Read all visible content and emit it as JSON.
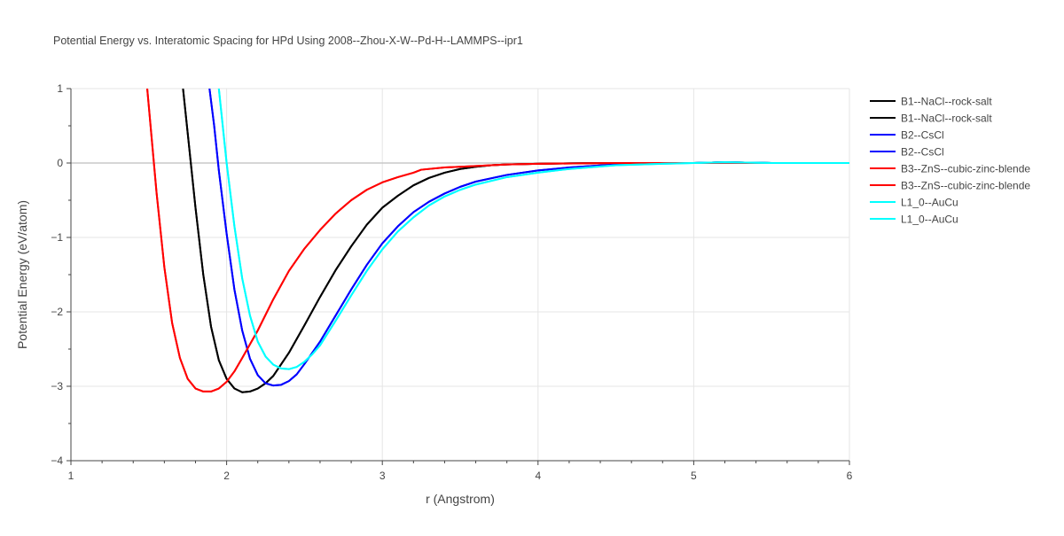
{
  "chart_data": {
    "type": "line",
    "title": "Potential Energy vs. Interatomic Spacing for HPd Using 2008--Zhou-X-W--Pd-H--LAMMPS--ipr1",
    "xlabel": "r (Angstrom)",
    "ylabel": "Potential Energy (eV/atom)",
    "xlim": [
      1,
      6
    ],
    "ylim": [
      -4,
      1
    ],
    "xticks": [
      1,
      2,
      3,
      4,
      5,
      6
    ],
    "yticks": [
      -4,
      -3,
      -2,
      -1,
      0,
      1
    ],
    "xtick_labels": [
      "1",
      "2",
      "3",
      "4",
      "5",
      "6"
    ],
    "ytick_labels": [
      "−4",
      "−3",
      "−2",
      "−1",
      "0",
      "1"
    ],
    "grid": true,
    "legend_position": "right",
    "series": [
      {
        "name": "B1--NaCl--rock-salt",
        "color": "#000000",
        "x": [
          1.72,
          1.75,
          1.8,
          1.85,
          1.9,
          1.95,
          2.0,
          2.05,
          2.1,
          2.15,
          2.2,
          2.25,
          2.3,
          2.4,
          2.5,
          2.6,
          2.7,
          2.8,
          2.9,
          3.0,
          3.1,
          3.2,
          3.3,
          3.4,
          3.5,
          3.6,
          3.7,
          3.8,
          4.0,
          4.2,
          4.5,
          4.8,
          5.0,
          5.2,
          5.5,
          6.0
        ],
        "y": [
          1.0,
          0.4,
          -0.6,
          -1.5,
          -2.2,
          -2.65,
          -2.9,
          -3.03,
          -3.08,
          -3.07,
          -3.03,
          -2.96,
          -2.86,
          -2.55,
          -2.18,
          -1.8,
          -1.44,
          -1.12,
          -0.83,
          -0.6,
          -0.44,
          -0.3,
          -0.2,
          -0.13,
          -0.08,
          -0.05,
          -0.03,
          -0.02,
          -0.01,
          -0.005,
          0.0,
          0.0,
          0.0,
          0.01,
          0.0,
          0.0
        ]
      },
      {
        "name": "B1--NaCl--rock-salt",
        "color": "#000000",
        "x": [
          1.72,
          1.75,
          1.8,
          1.85,
          1.9,
          1.95,
          2.0,
          2.05,
          2.1,
          2.15,
          2.2,
          2.25,
          2.3,
          2.4,
          2.5,
          2.6,
          2.7,
          2.8,
          2.9,
          3.0,
          3.1,
          3.2,
          3.3,
          3.4,
          3.5,
          3.6,
          3.7,
          3.8,
          4.0,
          4.2,
          4.5,
          4.8,
          5.0,
          5.2,
          5.5,
          6.0
        ],
        "y": [
          1.0,
          0.4,
          -0.6,
          -1.5,
          -2.2,
          -2.65,
          -2.9,
          -3.03,
          -3.08,
          -3.07,
          -3.03,
          -2.96,
          -2.86,
          -2.55,
          -2.18,
          -1.8,
          -1.44,
          -1.12,
          -0.83,
          -0.6,
          -0.44,
          -0.3,
          -0.2,
          -0.13,
          -0.08,
          -0.05,
          -0.03,
          -0.02,
          -0.01,
          -0.005,
          0.0,
          0.0,
          0.0,
          0.01,
          0.0,
          0.0
        ]
      },
      {
        "name": "B2--CsCl",
        "color": "#0000ff",
        "x": [
          1.89,
          1.92,
          1.95,
          2.0,
          2.05,
          2.1,
          2.15,
          2.2,
          2.25,
          2.3,
          2.35,
          2.4,
          2.45,
          2.5,
          2.6,
          2.7,
          2.8,
          2.9,
          3.0,
          3.1,
          3.2,
          3.3,
          3.4,
          3.5,
          3.6,
          3.8,
          4.0,
          4.2,
          4.5,
          4.8,
          5.0,
          5.2,
          5.5,
          6.0
        ],
        "y": [
          1.0,
          0.5,
          -0.1,
          -0.95,
          -1.7,
          -2.25,
          -2.63,
          -2.85,
          -2.96,
          -2.99,
          -2.98,
          -2.93,
          -2.84,
          -2.7,
          -2.4,
          -2.05,
          -1.7,
          -1.37,
          -1.08,
          -0.85,
          -0.66,
          -0.52,
          -0.41,
          -0.32,
          -0.25,
          -0.16,
          -0.1,
          -0.06,
          -0.02,
          0.0,
          0.0,
          0.01,
          0.0,
          0.0
        ]
      },
      {
        "name": "B2--CsCl",
        "color": "#0000ff",
        "x": [
          1.89,
          1.92,
          1.95,
          2.0,
          2.05,
          2.1,
          2.15,
          2.2,
          2.25,
          2.3,
          2.35,
          2.4,
          2.45,
          2.5,
          2.6,
          2.7,
          2.8,
          2.9,
          3.0,
          3.1,
          3.2,
          3.3,
          3.4,
          3.5,
          3.6,
          3.8,
          4.0,
          4.2,
          4.5,
          4.8,
          5.0,
          5.2,
          5.5,
          6.0
        ],
        "y": [
          1.0,
          0.5,
          -0.1,
          -0.95,
          -1.7,
          -2.25,
          -2.63,
          -2.85,
          -2.96,
          -2.99,
          -2.98,
          -2.93,
          -2.84,
          -2.7,
          -2.4,
          -2.05,
          -1.7,
          -1.37,
          -1.08,
          -0.85,
          -0.66,
          -0.52,
          -0.41,
          -0.32,
          -0.25,
          -0.16,
          -0.1,
          -0.06,
          -0.02,
          0.0,
          0.0,
          0.01,
          0.0,
          0.0
        ]
      },
      {
        "name": "B3--ZnS--cubic-zinc-blende",
        "color": "#ff0000",
        "x": [
          1.49,
          1.52,
          1.55,
          1.6,
          1.65,
          1.7,
          1.75,
          1.8,
          1.85,
          1.9,
          1.95,
          2.0,
          2.05,
          2.1,
          2.2,
          2.3,
          2.4,
          2.5,
          2.6,
          2.7,
          2.8,
          2.9,
          3.0,
          3.1,
          3.2,
          3.25,
          3.4,
          3.6,
          3.8,
          4.0,
          4.5,
          5.0,
          5.5,
          6.0
        ],
        "y": [
          1.0,
          0.3,
          -0.4,
          -1.4,
          -2.15,
          -2.62,
          -2.9,
          -3.03,
          -3.07,
          -3.07,
          -3.03,
          -2.94,
          -2.8,
          -2.62,
          -2.25,
          -1.83,
          -1.45,
          -1.15,
          -0.9,
          -0.68,
          -0.5,
          -0.36,
          -0.26,
          -0.19,
          -0.13,
          -0.09,
          -0.06,
          -0.04,
          -0.02,
          -0.01,
          0.0,
          0.0,
          0.0,
          0.0
        ]
      },
      {
        "name": "B3--ZnS--cubic-zinc-blende",
        "color": "#ff0000",
        "x": [
          1.49,
          1.52,
          1.55,
          1.6,
          1.65,
          1.7,
          1.75,
          1.8,
          1.85,
          1.9,
          1.95,
          2.0,
          2.05,
          2.1,
          2.2,
          2.3,
          2.4,
          2.5,
          2.6,
          2.7,
          2.8,
          2.9,
          3.0,
          3.1,
          3.2,
          3.25,
          3.4,
          3.6,
          3.8,
          4.0,
          4.5,
          5.0,
          5.5,
          6.0
        ],
        "y": [
          1.0,
          0.3,
          -0.4,
          -1.4,
          -2.15,
          -2.62,
          -2.9,
          -3.03,
          -3.07,
          -3.07,
          -3.03,
          -2.94,
          -2.8,
          -2.62,
          -2.25,
          -1.83,
          -1.45,
          -1.15,
          -0.9,
          -0.68,
          -0.5,
          -0.36,
          -0.26,
          -0.19,
          -0.13,
          -0.09,
          -0.06,
          -0.04,
          -0.02,
          -0.01,
          0.0,
          0.0,
          0.0,
          0.0
        ]
      },
      {
        "name": "L1_0--AuCu",
        "color": "#00ffff",
        "x": [
          1.95,
          1.97,
          2.0,
          2.05,
          2.1,
          2.15,
          2.2,
          2.25,
          2.3,
          2.35,
          2.4,
          2.45,
          2.5,
          2.55,
          2.6,
          2.7,
          2.8,
          2.9,
          3.0,
          3.1,
          3.2,
          3.3,
          3.4,
          3.5,
          3.6,
          3.8,
          4.0,
          4.2,
          4.5,
          4.8,
          5.0,
          5.2,
          5.5,
          6.0
        ],
        "y": [
          1.0,
          0.6,
          0.0,
          -0.85,
          -1.55,
          -2.05,
          -2.4,
          -2.6,
          -2.71,
          -2.76,
          -2.77,
          -2.74,
          -2.67,
          -2.57,
          -2.45,
          -2.12,
          -1.78,
          -1.45,
          -1.16,
          -0.92,
          -0.73,
          -0.57,
          -0.45,
          -0.36,
          -0.29,
          -0.19,
          -0.13,
          -0.08,
          -0.03,
          -0.01,
          0.0,
          0.01,
          0.0,
          0.0
        ]
      },
      {
        "name": "L1_0--AuCu",
        "color": "#00ffff",
        "x": [
          1.95,
          1.97,
          2.0,
          2.05,
          2.1,
          2.15,
          2.2,
          2.25,
          2.3,
          2.35,
          2.4,
          2.45,
          2.5,
          2.55,
          2.6,
          2.7,
          2.8,
          2.9,
          3.0,
          3.1,
          3.2,
          3.3,
          3.4,
          3.5,
          3.6,
          3.8,
          4.0,
          4.2,
          4.5,
          4.8,
          5.0,
          5.2,
          5.5,
          6.0
        ],
        "y": [
          1.0,
          0.6,
          0.0,
          -0.85,
          -1.55,
          -2.05,
          -2.4,
          -2.6,
          -2.71,
          -2.76,
          -2.77,
          -2.74,
          -2.67,
          -2.57,
          -2.45,
          -2.12,
          -1.78,
          -1.45,
          -1.16,
          -0.92,
          -0.73,
          -0.57,
          -0.45,
          -0.36,
          -0.29,
          -0.19,
          -0.13,
          -0.08,
          -0.03,
          -0.01,
          0.0,
          0.01,
          0.0,
          0.0
        ]
      }
    ]
  }
}
